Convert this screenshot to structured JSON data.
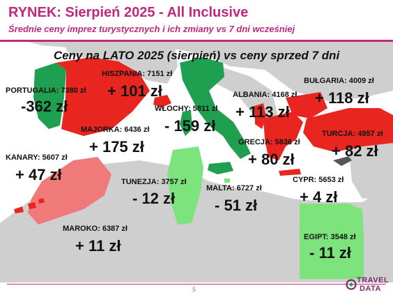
{
  "header": {
    "title": "RYNEK: Sierpień 2025 - All Inclusive",
    "subtitle": "Średnie ceny imprez turystycznych i ich zmiany vs 7 dni wcześniej"
  },
  "map": {
    "title": "Ceny na LATO 2025 (sierpień) vs ceny sprzed 7 dni",
    "legend_colors": {
      "increase_strong": "#e8251e",
      "increase_medium": "#f07a7a",
      "decrease_strong": "#1ea050",
      "decrease_light": "#7de37d",
      "land": "#cfcfcf",
      "sea": "#ffffff"
    },
    "regions": [
      {
        "id": "portugalia",
        "label": "PORTUGALIA: 7380 zł",
        "change": "-362 zł",
        "color": "#1ea050"
      },
      {
        "id": "hiszpania",
        "label": "HISZPANIA: 7151 zł",
        "change": "+ 101 zł",
        "color": "#e8251e"
      },
      {
        "id": "majorka",
        "label": "MAJORKA: 6436 zł",
        "change": "+ 175 zł",
        "color": "#e8251e"
      },
      {
        "id": "kanary",
        "label": "KANARY: 5607 zł",
        "change": "+ 47 zł",
        "color": "#e8251e"
      },
      {
        "id": "maroko",
        "label": "MAROKO: 6387 zł",
        "change": "+ 11 zł",
        "color": "#f07a7a"
      },
      {
        "id": "wlochy",
        "label": "WŁOCHY: 5811 zł",
        "change": "- 159 zł",
        "color": "#1ea050"
      },
      {
        "id": "tunezja",
        "label": "TUNEZJA: 3757 zł",
        "change": "- 12 zł",
        "color": "#7de37d"
      },
      {
        "id": "malta",
        "label": "MALTA: 6727 zł",
        "change": "- 51 zł",
        "color": "#7de37d"
      },
      {
        "id": "albania",
        "label": "ALBANIA: 4168 zł",
        "change": "+ 113 zł",
        "color": "#e8251e"
      },
      {
        "id": "grecja",
        "label": "GRECJA: 5836 zł",
        "change": "+ 80 zł",
        "color": "#e8251e"
      },
      {
        "id": "bulgaria",
        "label": "BUŁGARIA: 4009 zł",
        "change": "+ 118 zł",
        "color": "#e8251e"
      },
      {
        "id": "turcja",
        "label": "TURCJA: 4957 zł",
        "change": "+ 82 zł",
        "color": "#e8251e"
      },
      {
        "id": "cypr",
        "label": "CYPR: 5653 zł",
        "change": "+ 4 zł",
        "color": "#555555"
      },
      {
        "id": "egipt",
        "label": "EGIPT: 3548 zł",
        "change": "- 11 zł",
        "color": "#7de37d"
      }
    ]
  },
  "footer": {
    "page_number": "5",
    "logo": "TRAVEL DATA"
  }
}
